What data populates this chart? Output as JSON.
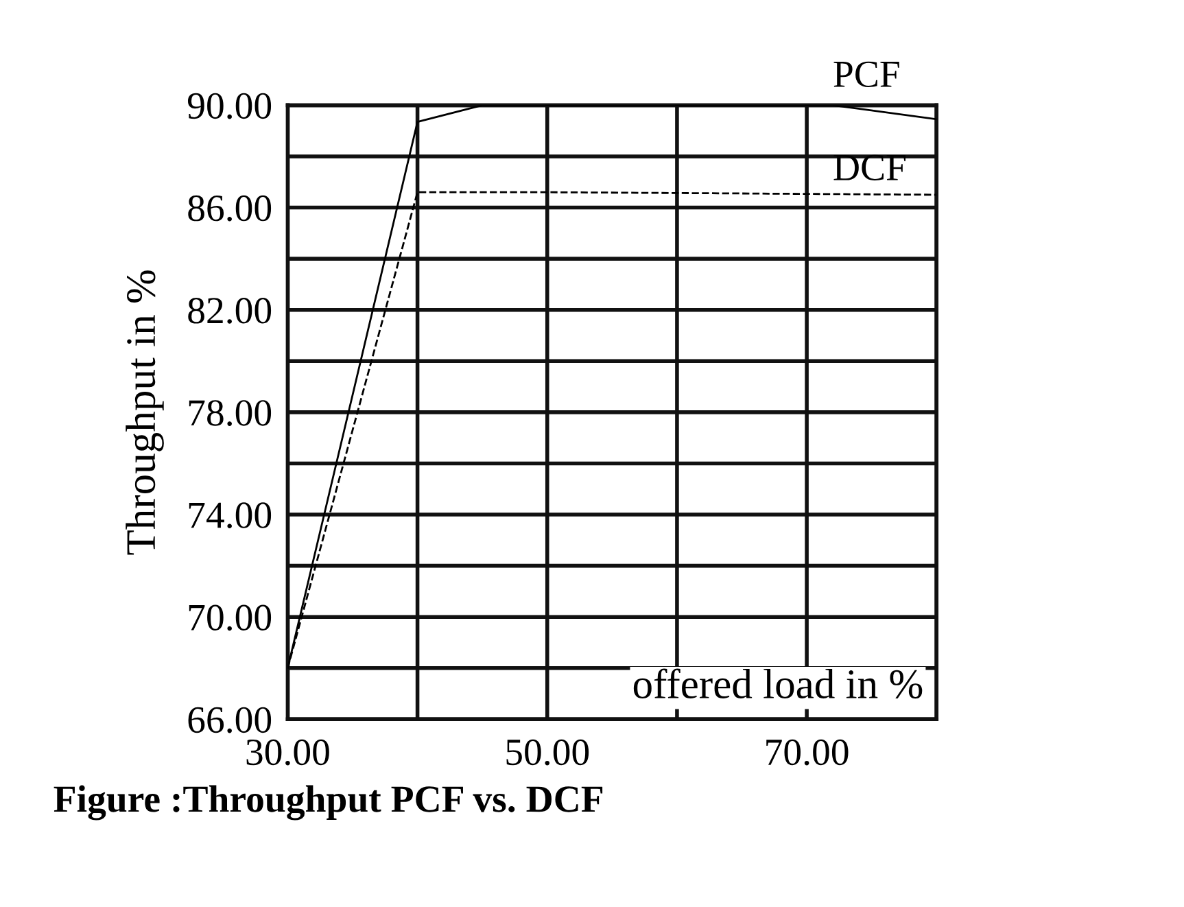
{
  "chart_data": {
    "type": "line",
    "xlabel": "offered load in %",
    "ylabel": "Throughput in %",
    "xlim": [
      30,
      80
    ],
    "ylim": [
      66,
      90
    ],
    "xticks": [
      {
        "value": 30,
        "label": "30.00"
      },
      {
        "value": 40,
        "label": null
      },
      {
        "value": 50,
        "label": "50.00"
      },
      {
        "value": 60,
        "label": null
      },
      {
        "value": 70,
        "label": "70.00"
      },
      {
        "value": 80,
        "label": null
      }
    ],
    "yticks": [
      {
        "value": 66,
        "label": "66.00"
      },
      {
        "value": 68,
        "label": null
      },
      {
        "value": 70,
        "label": "70.00"
      },
      {
        "value": 72,
        "label": null
      },
      {
        "value": 74,
        "label": "74.00"
      },
      {
        "value": 76,
        "label": null
      },
      {
        "value": 78,
        "label": "78.00"
      },
      {
        "value": 80,
        "label": null
      },
      {
        "value": 82,
        "label": "82.00"
      },
      {
        "value": 84,
        "label": null
      },
      {
        "value": 86,
        "label": "86.00"
      },
      {
        "value": 88,
        "label": null
      },
      {
        "value": 90,
        "label": "90.00"
      }
    ],
    "grid": true,
    "series": [
      {
        "name": "PCF",
        "color": "#000000",
        "line_style": "solid",
        "x": [
          30,
          40,
          45,
          72,
          80
        ],
        "values": [
          68,
          89.35,
          90,
          90,
          89.45
        ]
      },
      {
        "name": "DCF",
        "color": "#000000",
        "line_style": "dashed",
        "x": [
          30,
          40,
          50,
          80
        ],
        "values": [
          68,
          86.6,
          86.6,
          86.5
        ]
      }
    ],
    "annotations": [
      "Figure :Throughput PCF vs. DCF"
    ]
  }
}
